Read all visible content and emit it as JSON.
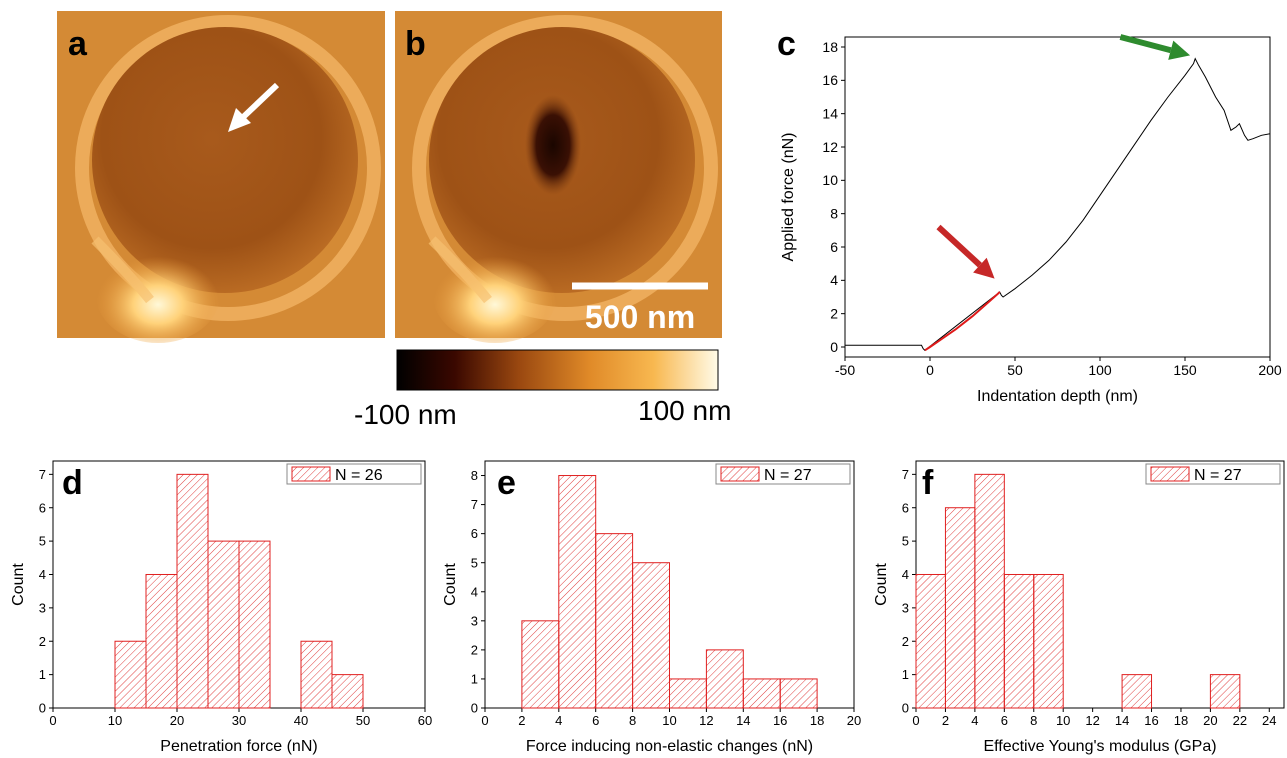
{
  "panels": {
    "a": {
      "letter": "a"
    },
    "b": {
      "letter": "b",
      "scalebar_label": "500 nm"
    },
    "colorbar": {
      "min_label": "-100 nm",
      "max_label": "100 nm"
    }
  },
  "chart_data": [
    {
      "id": "c",
      "letter": "c",
      "type": "line",
      "xlabel": "Indentation depth (nm)",
      "ylabel": "Applied force (nN)",
      "xlim": [
        -50,
        200
      ],
      "ylim": [
        -0.6,
        18.6
      ],
      "xticks": [
        -50,
        0,
        50,
        100,
        150,
        200
      ],
      "yticks": [
        0,
        2,
        4,
        6,
        8,
        10,
        12,
        14,
        16,
        18
      ],
      "series": [
        {
          "color": "#000000",
          "points": [
            [
              -50,
              0.1
            ],
            [
              -40,
              0.1
            ],
            [
              -30,
              0.1
            ],
            [
              -20,
              0.1
            ],
            [
              -10,
              0.1
            ],
            [
              -5,
              0.1
            ],
            [
              -4,
              -0.1
            ],
            [
              -3,
              -0.2
            ],
            [
              41,
              3.3
            ],
            [
              42,
              3.1
            ],
            [
              43,
              3.0
            ],
            [
              50,
              3.5
            ],
            [
              60,
              4.3
            ],
            [
              70,
              5.2
            ],
            [
              80,
              6.3
            ],
            [
              90,
              7.6
            ],
            [
              100,
              9.1
            ],
            [
              110,
              10.6
            ],
            [
              120,
              12.1
            ],
            [
              130,
              13.6
            ],
            [
              140,
              15.0
            ],
            [
              150,
              16.3
            ],
            [
              155,
              17.0
            ],
            [
              156,
              17.3
            ],
            [
              158,
              16.9
            ],
            [
              162,
              16.2
            ],
            [
              168,
              15.0
            ],
            [
              173,
              14.2
            ],
            [
              177,
              13.0
            ],
            [
              180,
              13.2
            ],
            [
              182,
              13.4
            ],
            [
              185,
              12.7
            ],
            [
              187,
              12.4
            ],
            [
              190,
              12.5
            ],
            [
              195,
              12.7
            ],
            [
              200,
              12.8
            ]
          ]
        },
        {
          "color": "#e01a1a",
          "points": [
            [
              -3,
              -0.2
            ],
            [
              0,
              0.0
            ],
            [
              5,
              0.35
            ],
            [
              10,
              0.7
            ],
            [
              15,
              1.05
            ],
            [
              20,
              1.45
            ],
            [
              25,
              1.85
            ],
            [
              30,
              2.3
            ],
            [
              35,
              2.75
            ],
            [
              40,
              3.2
            ],
            [
              41,
              3.3
            ]
          ]
        }
      ],
      "annotations": [
        {
          "type": "arrow",
          "color": "#c62828",
          "tip": [
            38,
            4.1
          ],
          "tail": [
            5,
            7.2
          ]
        },
        {
          "type": "arrow",
          "color": "#2e8b2e",
          "tip": [
            153,
            17.5
          ],
          "tail": [
            112,
            18.6
          ]
        }
      ]
    },
    {
      "id": "d",
      "letter": "d",
      "type": "bar",
      "legend": "N = 26",
      "xlabel": "Penetration force (nN)",
      "ylabel": "Count",
      "xlim": [
        0,
        60
      ],
      "ylim": [
        0,
        7.4
      ],
      "xticks": [
        0,
        10,
        20,
        30,
        40,
        50,
        60
      ],
      "yticks": [
        0,
        1,
        2,
        3,
        4,
        5,
        6,
        7
      ],
      "bin_width": 5,
      "bins": [
        [
          10,
          2
        ],
        [
          15,
          4
        ],
        [
          20,
          7
        ],
        [
          25,
          5
        ],
        [
          30,
          5
        ],
        [
          40,
          2
        ],
        [
          45,
          1
        ]
      ]
    },
    {
      "id": "e",
      "letter": "e",
      "type": "bar",
      "legend": "N = 27",
      "xlabel": "Force inducing non-elastic changes (nN)",
      "ylabel": "Count",
      "xlim": [
        0,
        20
      ],
      "ylim": [
        0,
        8.5
      ],
      "xticks": [
        0,
        2,
        4,
        6,
        8,
        10,
        12,
        14,
        16,
        18,
        20
      ],
      "yticks": [
        0,
        1,
        2,
        3,
        4,
        5,
        6,
        7,
        8
      ],
      "bin_width": 2,
      "bins": [
        [
          2,
          3
        ],
        [
          4,
          8
        ],
        [
          6,
          6
        ],
        [
          8,
          5
        ],
        [
          10,
          1
        ],
        [
          12,
          2
        ],
        [
          14,
          1
        ],
        [
          16,
          1
        ]
      ]
    },
    {
      "id": "f",
      "letter": "f",
      "type": "bar",
      "legend": "N = 27",
      "xlabel": "Effective Young's modulus (GPa)",
      "ylabel": "Count",
      "xlim": [
        0,
        25
      ],
      "ylim": [
        0,
        7.4
      ],
      "xticks": [
        0,
        2,
        4,
        6,
        8,
        10,
        12,
        14,
        16,
        18,
        20,
        22,
        24
      ],
      "yticks": [
        0,
        1,
        2,
        3,
        4,
        5,
        6,
        7
      ],
      "bin_width": 2,
      "bins": [
        [
          0,
          4
        ],
        [
          2,
          6
        ],
        [
          4,
          7
        ],
        [
          6,
          4
        ],
        [
          8,
          4
        ],
        [
          14,
          1
        ],
        [
          20,
          1
        ]
      ]
    }
  ]
}
